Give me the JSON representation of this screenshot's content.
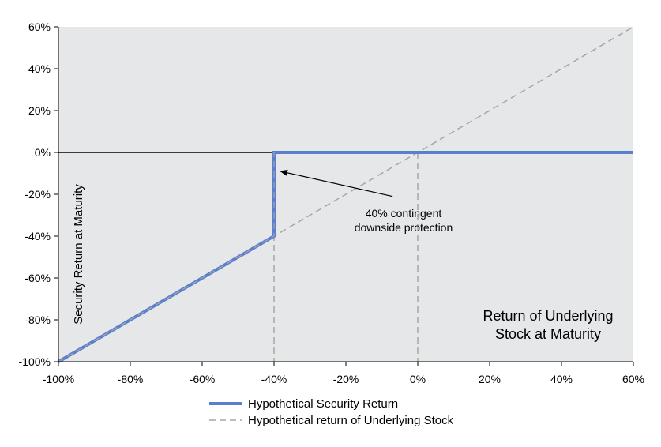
{
  "chart_data": {
    "type": "line",
    "xlabel": [
      "Return of Underlying",
      "Stock at Maturity"
    ],
    "ylabel": "Security Return at Maturity",
    "xlim": [
      -1.0,
      0.6
    ],
    "ylim": [
      -1.0,
      0.6
    ],
    "x_ticks": [
      -1.0,
      -0.8,
      -0.6,
      -0.4,
      -0.2,
      0.0,
      0.2,
      0.4,
      0.6
    ],
    "y_ticks": [
      -1.0,
      -0.8,
      -0.6,
      -0.4,
      -0.2,
      0.0,
      0.2,
      0.4,
      0.6
    ],
    "x_tick_labels": [
      "-100%",
      "-80%",
      "-60%",
      "-40%",
      "-20%",
      "0%",
      "20%",
      "40%",
      "60%"
    ],
    "y_tick_labels": [
      "-100%",
      "-80%",
      "-60%",
      "-40%",
      "-20%",
      "0%",
      "20%",
      "40%",
      "60%"
    ],
    "grid": false,
    "legend_position": "bottom",
    "series": [
      {
        "name": "Hypothetical Security Return",
        "color": "#5B7FCE",
        "style": "solid",
        "points": [
          [
            -1.0,
            -1.0
          ],
          [
            -0.4,
            -0.4
          ],
          [
            -0.4,
            0.0
          ],
          [
            0.6,
            0.0
          ]
        ]
      },
      {
        "name": "Hypothetical return of Underlying Stock",
        "color": "#A6A6A6",
        "style": "dashed",
        "points": [
          [
            -1.0,
            -1.0
          ],
          [
            0.6,
            0.6
          ]
        ]
      }
    ],
    "annotations": [
      {
        "lines": [
          "40% contingent",
          "downside protection"
        ],
        "arrow_to": [
          -0.4,
          -0.09
        ],
        "arrow_from": [
          -0.07,
          -0.21
        ]
      }
    ],
    "reference_lines": {
      "horizontal_y": 0.0,
      "vertical_dashed_x": [
        -0.4,
        0.0
      ]
    },
    "colors": {
      "plot_background": "#E6E7E8",
      "zero_line": "#000000",
      "reference_dashed": "#A6A6A6"
    }
  }
}
